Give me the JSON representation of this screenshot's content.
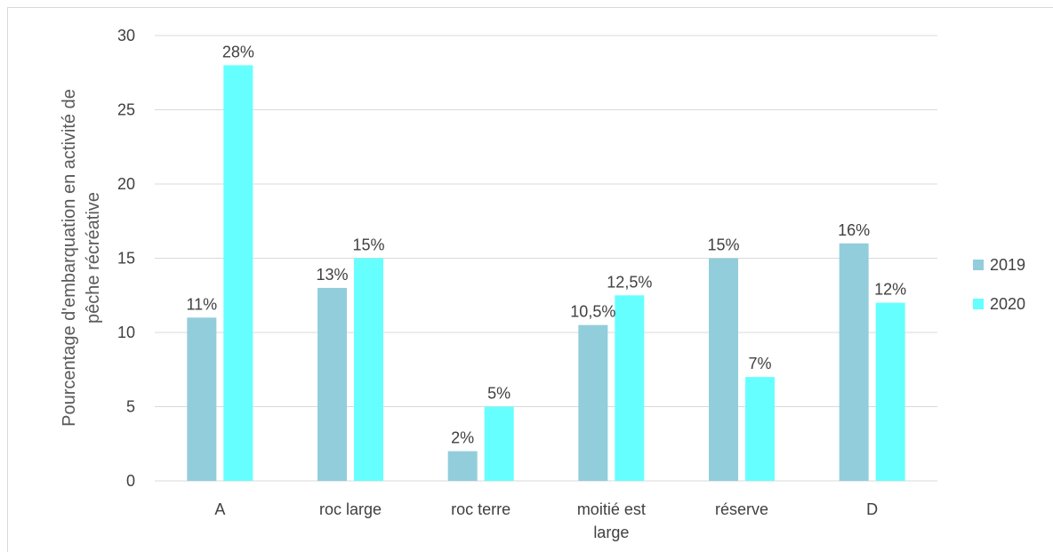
{
  "chart_data": {
    "type": "bar",
    "title": "",
    "xlabel": "",
    "ylabel": "Pourcentage d'embarquation en activité de pêche récréative",
    "ylim": [
      0,
      30
    ],
    "yticks": [
      0,
      5,
      10,
      15,
      20,
      25,
      30
    ],
    "grid": true,
    "legend_position": "right",
    "categories": [
      "A",
      "roc large",
      "roc terre",
      "moitié est large",
      "réserve",
      "D"
    ],
    "series": [
      {
        "name": "2019",
        "color": "#92CDDC",
        "values": [
          11,
          13,
          2,
          10.5,
          15,
          16
        ],
        "labels": [
          "11%",
          "13%",
          "2%",
          "10,5%",
          "15%",
          "16%"
        ]
      },
      {
        "name": "2020",
        "color": "#66FFFF",
        "values": [
          28,
          15,
          5,
          12.5,
          7,
          12
        ],
        "labels": [
          "28%",
          "15%",
          "5%",
          "12,5%",
          "7%",
          "12%"
        ]
      }
    ]
  }
}
